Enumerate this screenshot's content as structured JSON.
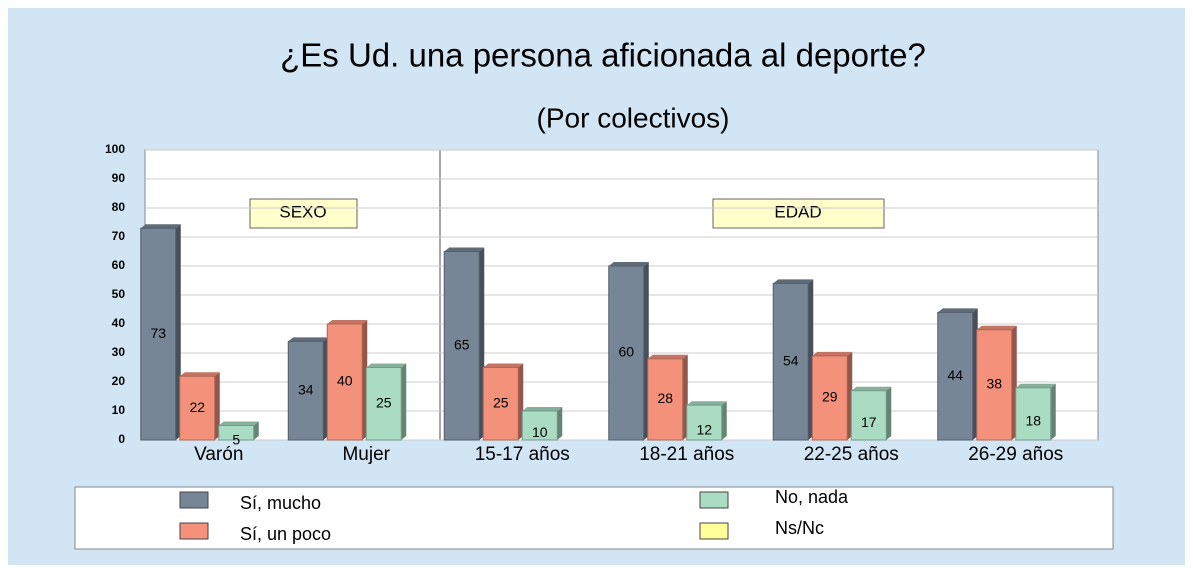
{
  "chart_data": {
    "type": "bar",
    "title": "¿Es Ud. una persona aficionada al deporte?",
    "subtitle": "(Por colectivos)",
    "annotations": [
      "SEXO",
      "EDAD"
    ],
    "categories": [
      "Varón",
      "Mujer",
      "15-17 años",
      "18-21 años",
      "22-25 años",
      "26-29 años"
    ],
    "series": [
      {
        "name": "Sí, mucho",
        "color": "#778696",
        "values": [
          73,
          34,
          65,
          60,
          54,
          44
        ]
      },
      {
        "name": "Sí, un poco",
        "color": "#f4917b",
        "values": [
          22,
          40,
          25,
          28,
          29,
          38
        ]
      },
      {
        "name": "No, nada",
        "color": "#a9dcc3",
        "values": [
          5,
          25,
          10,
          12,
          17,
          18
        ]
      },
      {
        "name": "Ns/Nc",
        "color": "#ffff99",
        "values": [
          null,
          null,
          null,
          null,
          null,
          null
        ]
      }
    ],
    "ylim": [
      0,
      100
    ],
    "yticks": [
      0,
      10,
      20,
      30,
      40,
      50,
      60,
      70,
      80,
      90,
      100
    ],
    "grid": true,
    "legend": "bottom"
  }
}
